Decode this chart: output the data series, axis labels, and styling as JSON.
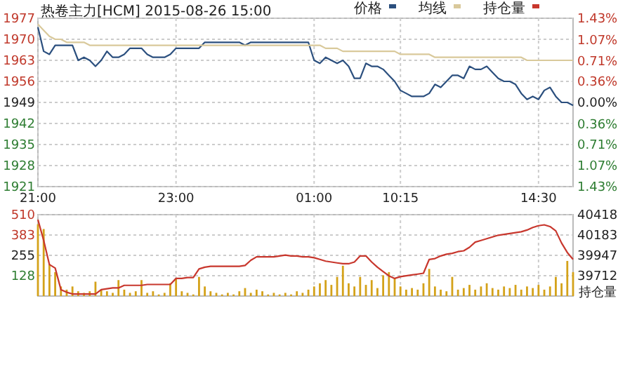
{
  "chart_data": [
    {
      "type": "line",
      "title": "热卷主力[HCM] 2015-08-26 15:00",
      "categories": [
        "21:00",
        null,
        null,
        null,
        null,
        null,
        null,
        null,
        null,
        null,
        null,
        null,
        null,
        null,
        null,
        null,
        null,
        null,
        null,
        null,
        null,
        null,
        null,
        null,
        "23:00",
        null,
        null,
        null,
        null,
        null,
        null,
        null,
        null,
        null,
        null,
        null,
        null,
        null,
        null,
        null,
        null,
        null,
        null,
        null,
        null,
        null,
        null,
        null,
        "01:00",
        null,
        null,
        null,
        null,
        null,
        null,
        null,
        null,
        null,
        null,
        null,
        null,
        null,
        null,
        "10:15",
        null,
        null,
        null,
        null,
        null,
        null,
        null,
        null,
        null,
        null,
        null,
        null,
        null,
        null,
        null,
        null,
        null,
        null,
        null,
        null,
        null,
        null,
        null,
        "14:30",
        null,
        null,
        null,
        null,
        null,
        null
      ],
      "ylim": [
        1921,
        1977
      ],
      "yticks": [
        1921,
        1928,
        1935,
        1942,
        1949,
        1956,
        1963,
        1970,
        1977
      ],
      "y2lim": [
        -1.43,
        1.43
      ],
      "y2ticks": [
        {
          "value": -1.43,
          "label": "1.43%"
        },
        {
          "value": -1.07,
          "label": "1.07%"
        },
        {
          "value": -0.71,
          "label": "0.71%"
        },
        {
          "value": -0.36,
          "label": "0.36%"
        },
        {
          "value": 0,
          "label": "0.00%"
        },
        {
          "value": 0.36,
          "label": "0.36%"
        },
        {
          "value": 0.71,
          "label": "0.71%"
        },
        {
          "value": 1.07,
          "label": "1.07%"
        },
        {
          "value": 1.43,
          "label": "1.43%"
        }
      ],
      "grid": true,
      "legend": "top right",
      "series": [
        {
          "name": "价格",
          "color": "#2b4f7e",
          "values": [
            1974,
            1966,
            1965,
            1968,
            1968,
            1968,
            1968,
            1963,
            1964,
            1963,
            1961,
            1963,
            1966,
            1964,
            1964,
            1965,
            1967,
            1967,
            1967,
            1965,
            1964,
            1964,
            1964,
            1965,
            1967,
            1967,
            1967,
            1967,
            1967,
            1969,
            1969,
            1969,
            1969,
            1969,
            1969,
            1969,
            1968,
            1969,
            1969,
            1969,
            1969,
            1969,
            1969,
            1969,
            1969,
            1969,
            1969,
            1969,
            1963,
            1962,
            1964,
            1963,
            1962,
            1963,
            1961,
            1957,
            1957,
            1962,
            1961,
            1961,
            1960,
            1958,
            1956,
            1953,
            1952,
            1951,
            1951,
            1951,
            1952,
            1955,
            1954,
            1956,
            1958,
            1958,
            1957,
            1961,
            1960,
            1960,
            1961,
            1959,
            1957,
            1956,
            1956,
            1955,
            1952,
            1950,
            1951,
            1950,
            1953,
            1954,
            1951,
            1949,
            1949,
            1948
          ]
        },
        {
          "name": "均线",
          "color": "#d9c99b",
          "values": [
            1975,
            1973,
            1971,
            1970,
            1970,
            1969,
            1969,
            1969,
            1969,
            1968,
            1968,
            1968,
            1968,
            1968,
            1968,
            1968,
            1968,
            1968,
            1968,
            1968,
            1968,
            1968,
            1968,
            1968,
            1968,
            1968,
            1968,
            1968,
            1968,
            1968,
            1968,
            1968,
            1968,
            1968,
            1968,
            1968,
            1968,
            1968,
            1968,
            1968,
            1968,
            1968,
            1968,
            1968,
            1968,
            1968,
            1968,
            1968,
            1968,
            1968,
            1967,
            1967,
            1967,
            1966,
            1966,
            1966,
            1966,
            1966,
            1966,
            1966,
            1966,
            1966,
            1966,
            1965,
            1965,
            1965,
            1965,
            1965,
            1965,
            1964,
            1964,
            1964,
            1964,
            1964,
            1964,
            1964,
            1964,
            1964,
            1964,
            1964,
            1964,
            1964,
            1964,
            1964,
            1964,
            1963,
            1963,
            1963,
            1963,
            1963,
            1963,
            1963,
            1963,
            1963
          ]
        }
      ]
    },
    {
      "type": "bar",
      "categories": [
        null,
        null,
        null,
        null,
        null,
        null,
        null,
        null,
        null,
        null,
        null,
        null,
        null,
        null,
        null,
        null,
        null,
        null,
        null,
        null,
        null,
        null,
        null,
        null,
        null,
        null,
        null,
        null,
        null,
        null,
        null,
        null,
        null,
        null,
        null,
        null,
        null,
        null,
        null,
        null,
        null,
        null,
        null,
        null,
        null,
        null,
        null,
        null,
        null,
        null,
        null,
        null,
        null,
        null,
        null,
        null,
        null,
        null,
        null,
        null,
        null,
        null,
        null,
        null,
        null,
        null,
        null,
        null,
        null,
        null,
        null,
        null,
        null,
        null,
        null,
        null,
        null,
        null,
        null,
        null,
        null,
        null,
        null,
        null,
        null,
        null,
        null,
        null,
        null,
        null,
        null,
        null,
        null,
        null
      ],
      "ylim": [
        0,
        510
      ],
      "yticks": [
        128,
        255,
        383,
        510
      ],
      "y2lim": [
        39476,
        40418
      ],
      "y2ticks": [
        39712,
        39947,
        40183,
        40418
      ],
      "y2label": "持仓量",
      "tick_labels": "y",
      "grid": true,
      "legend": "top",
      "series": [
        {
          "color": "#d4a21a",
          "values": [
            450,
            420,
            200,
            150,
            60,
            40,
            60,
            30,
            20,
            30,
            90,
            40,
            30,
            20,
            100,
            40,
            20,
            30,
            100,
            20,
            30,
            10,
            20,
            80,
            110,
            30,
            20,
            10,
            120,
            60,
            30,
            20,
            10,
            20,
            10,
            30,
            50,
            20,
            40,
            30,
            10,
            20,
            10,
            20,
            10,
            30,
            20,
            40,
            60,
            80,
            100,
            70,
            120,
            190,
            80,
            60,
            120,
            70,
            100,
            50,
            130,
            150,
            110,
            60,
            40,
            50,
            40,
            80,
            170,
            60,
            40,
            30,
            120,
            40,
            50,
            70,
            40,
            60,
            80,
            50,
            40,
            60,
            50,
            70,
            40,
            60,
            50,
            70,
            40,
            60,
            120,
            80,
            220,
            150
          ]
        },
        {
          "type": "line",
          "name": "持仓量",
          "axis": "y2",
          "color": "#c8372d",
          "values": [
            40360,
            40120,
            39840,
            39800,
            39550,
            39520,
            39500,
            39500,
            39500,
            39500,
            39500,
            39550,
            39560,
            39570,
            39570,
            39600,
            39600,
            39600,
            39600,
            39610,
            39610,
            39610,
            39610,
            39610,
            39680,
            39680,
            39690,
            39690,
            39790,
            39810,
            39820,
            39820,
            39820,
            39820,
            39820,
            39820,
            39830,
            39890,
            39930,
            39930,
            39930,
            39930,
            39940,
            39950,
            39940,
            39940,
            39930,
            39930,
            39920,
            39900,
            39880,
            39870,
            39860,
            39850,
            39850,
            39870,
            39940,
            39940,
            39870,
            39810,
            39760,
            39710,
            39680,
            39700,
            39710,
            39720,
            39730,
            39740,
            39900,
            39910,
            39940,
            39960,
            39970,
            39990,
            40000,
            40040,
            40100,
            40120,
            40140,
            40160,
            40180,
            40190,
            40200,
            40210,
            40220,
            40240,
            40270,
            40290,
            40300,
            40280,
            40230,
            40090,
            39980,
            39900
          ]
        }
      ]
    }
  ]
}
